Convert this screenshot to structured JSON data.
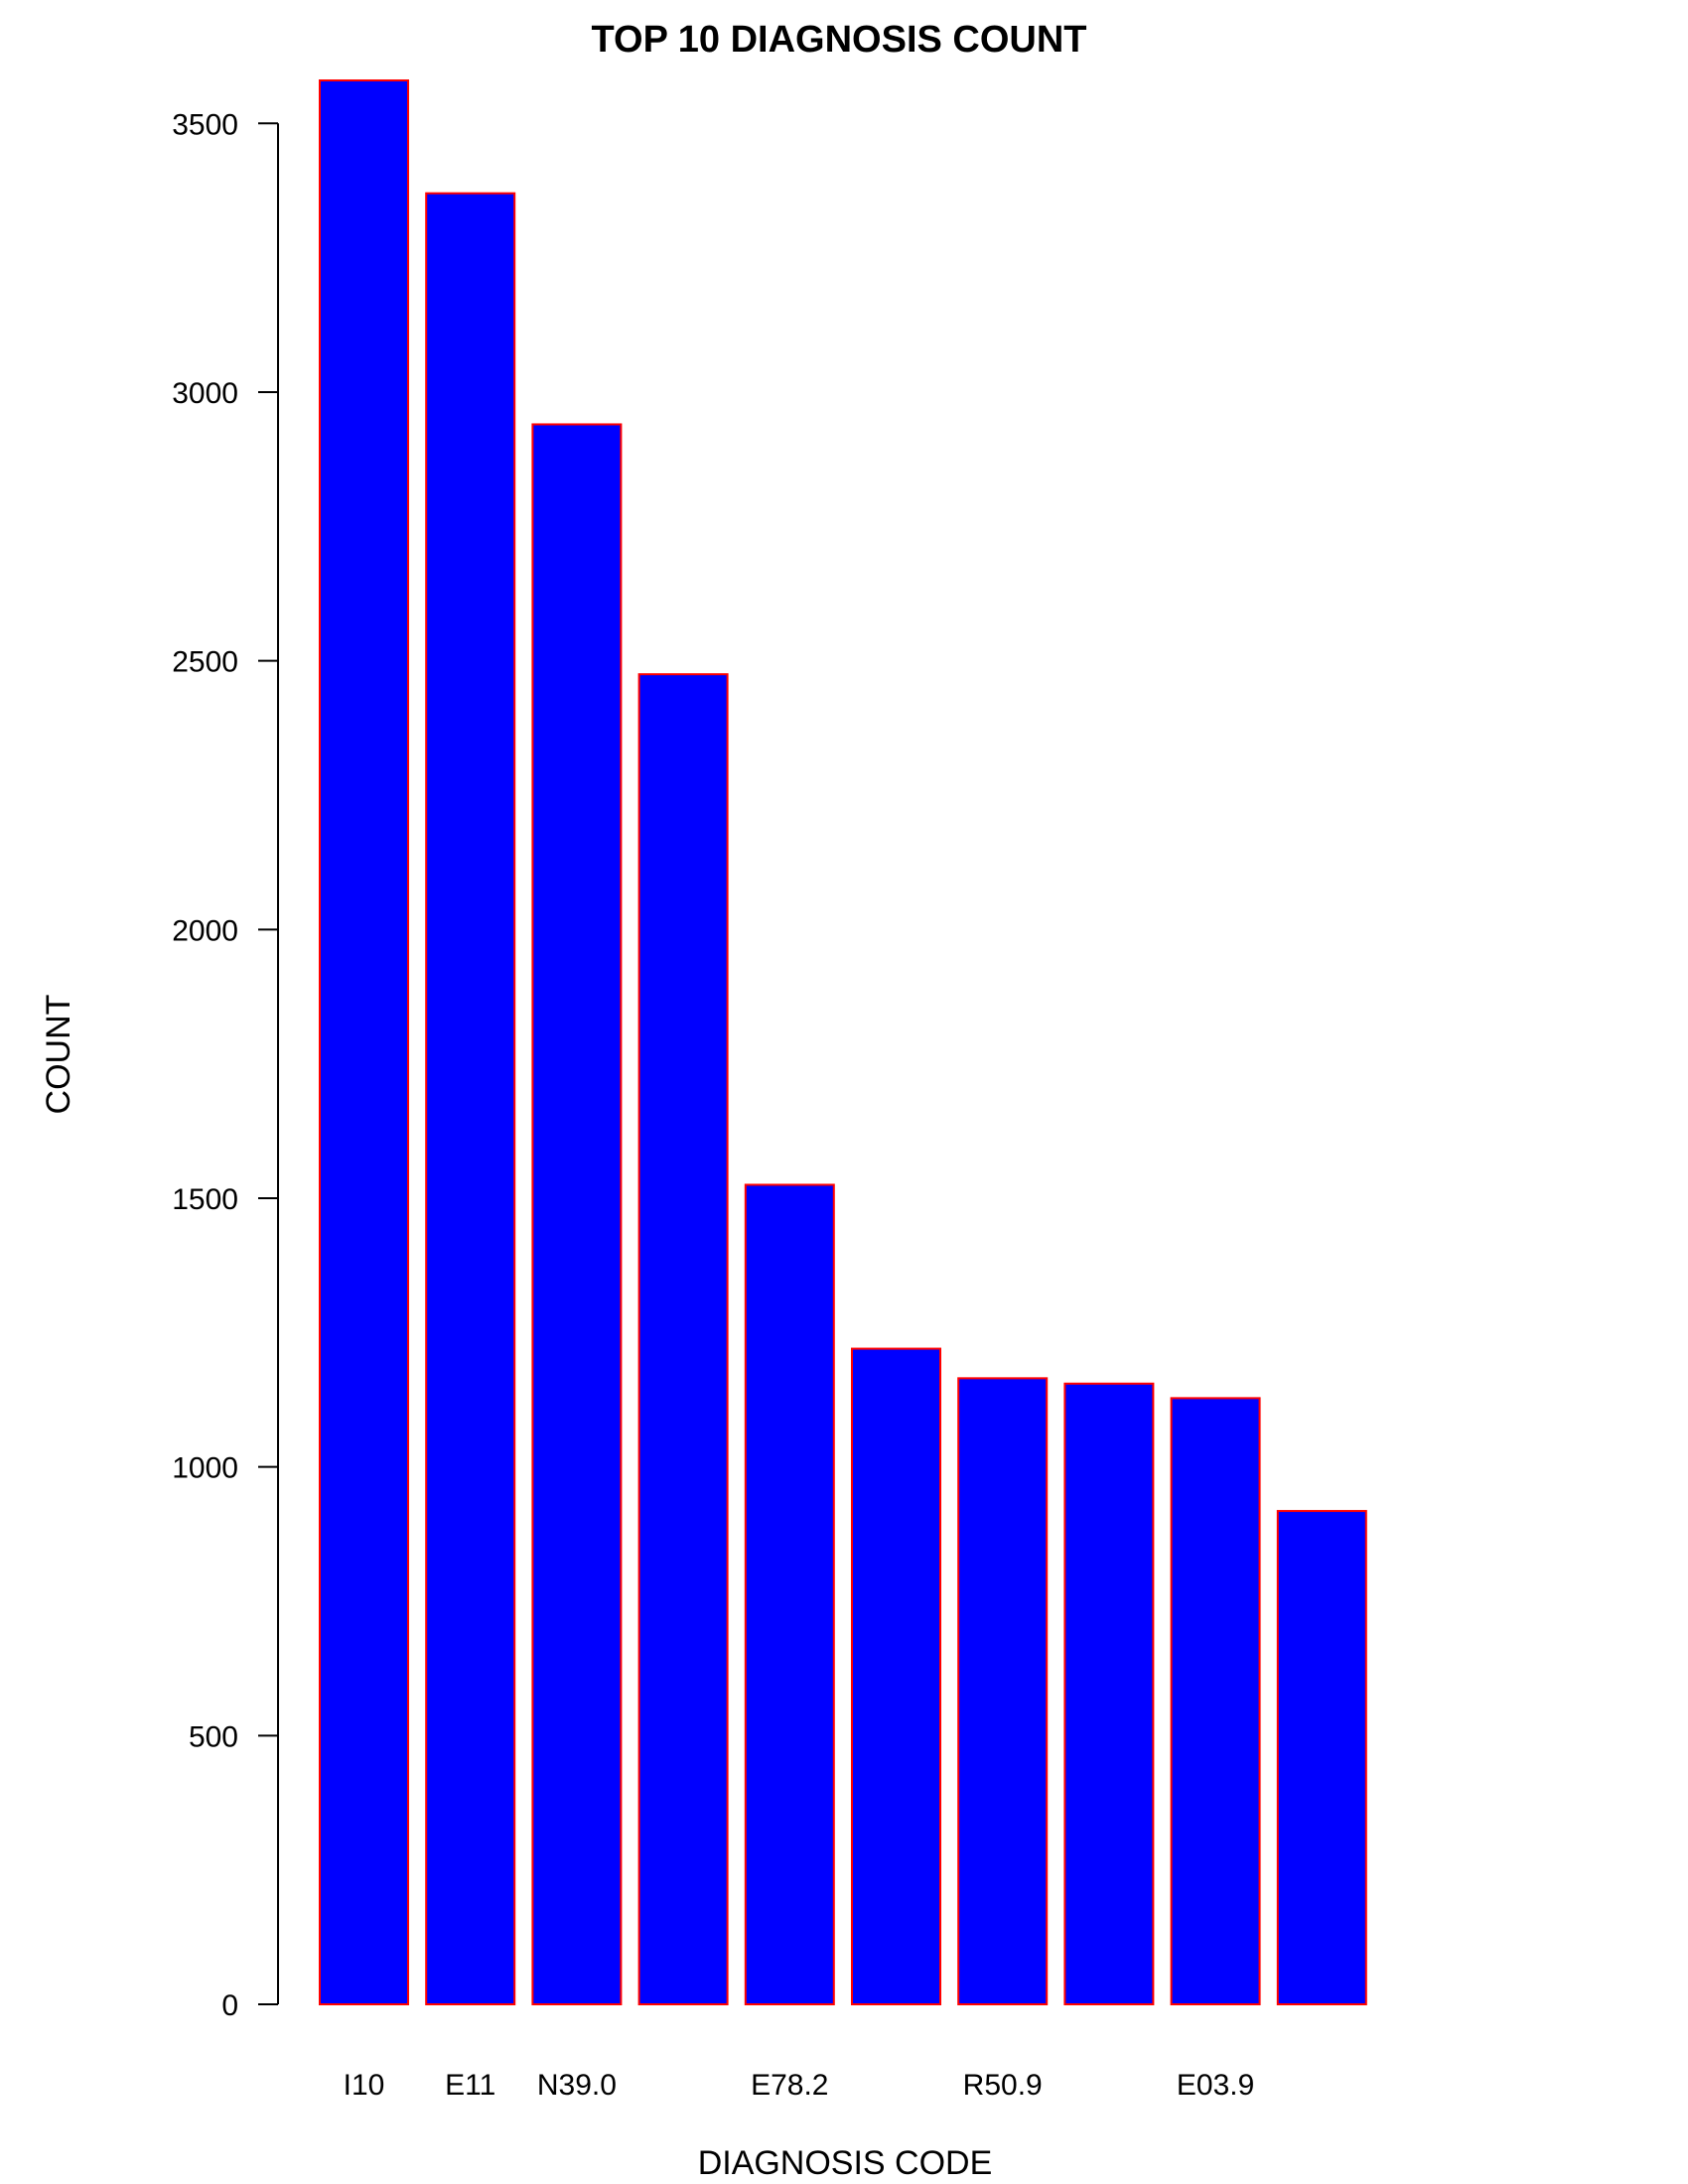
{
  "chart_data": {
    "type": "bar",
    "title": "TOP 10 DIAGNOSIS COUNT",
    "xlabel": "DIAGNOSIS CODE",
    "ylabel": "COUNT",
    "categories": [
      "I10",
      "E11",
      "N39.0",
      "",
      "E78.2",
      "",
      "R50.9",
      "",
      "E03.9",
      ""
    ],
    "values": [
      3580,
      3370,
      2940,
      2475,
      1525,
      1220,
      1165,
      1155,
      1128,
      918
    ],
    "ylim": [
      0,
      3580
    ],
    "yticks": [
      "0",
      "500",
      "1000",
      "1500",
      "2000",
      "2500",
      "3000",
      "3500"
    ],
    "bar_fill": "#0000ff",
    "bar_border": "#ff0000",
    "grid": false,
    "legend": "none"
  }
}
